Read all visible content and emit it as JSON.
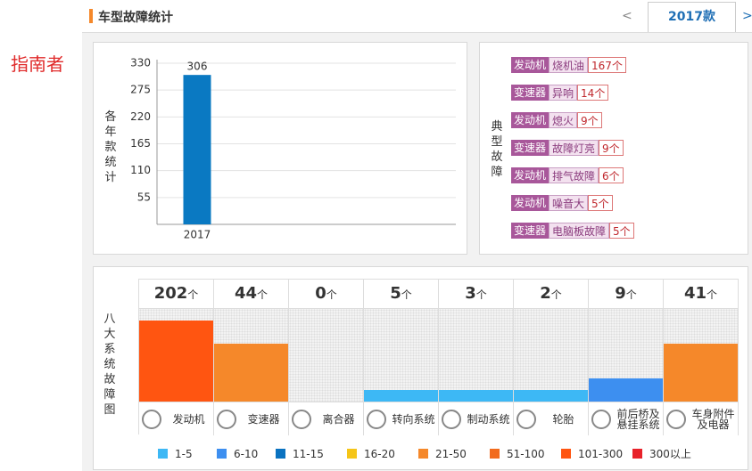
{
  "brand": "指南者",
  "header": {
    "title": "车型故障统计",
    "prev": "<",
    "tab": "2017款",
    "next": ">"
  },
  "chart_data": {
    "type": "bar",
    "y_label": "各年款统计",
    "categories": [
      "2017"
    ],
    "values": [
      306
    ],
    "color": "#0a79c2",
    "ylim": [
      0,
      330
    ],
    "yticks": [
      55,
      110,
      165,
      220,
      275,
      330
    ],
    "grid": true
  },
  "typical": {
    "label": "典型故障",
    "unit": "个",
    "items": [
      {
        "system": "发动机",
        "fault": "烧机油",
        "count": 167
      },
      {
        "system": "变速器",
        "fault": "异响",
        "count": 14
      },
      {
        "system": "发动机",
        "fault": "熄火",
        "count": 9
      },
      {
        "system": "变速器",
        "fault": "故障灯亮",
        "count": 9
      },
      {
        "system": "发动机",
        "fault": "排气故障",
        "count": 6
      },
      {
        "system": "发动机",
        "fault": "噪音大",
        "count": 5
      },
      {
        "system": "变速器",
        "fault": "电脑板故障",
        "count": 5
      }
    ]
  },
  "systems": {
    "label": "八大系统故障图",
    "unit": "个",
    "categories": [
      "发动机",
      "变速器",
      "离合器",
      "转向系统",
      "制动系统",
      "轮胎",
      "前后桥及悬挂系统",
      "车身附件及电器"
    ],
    "values": [
      202,
      44,
      0,
      5,
      3,
      2,
      9,
      41
    ],
    "legend": [
      {
        "label": "1-5",
        "color": "#3db8f5"
      },
      {
        "label": "6-10",
        "color": "#3d8ff0"
      },
      {
        "label": "11-15",
        "color": "#0a72c0"
      },
      {
        "label": "16-20",
        "color": "#f5c518"
      },
      {
        "label": "21-50",
        "color": "#f5882a"
      },
      {
        "label": "51-100",
        "color": "#f26b1d"
      },
      {
        "label": "101-300",
        "color": "#ff5511"
      },
      {
        "label": "300以上",
        "color": "#e8222a"
      }
    ]
  }
}
